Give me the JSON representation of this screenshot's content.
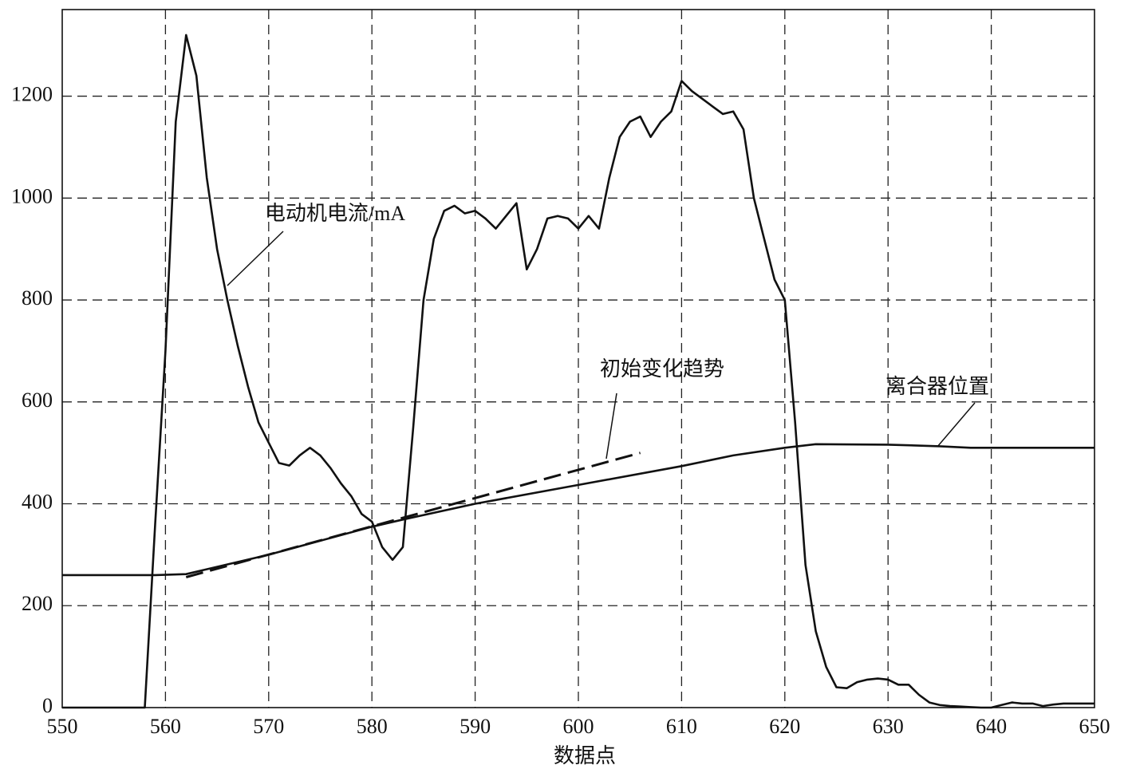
{
  "chart_data": {
    "type": "line",
    "xlabel": "数据点",
    "xlim": [
      550,
      650
    ],
    "xticks": [
      550,
      560,
      570,
      580,
      590,
      600,
      610,
      620,
      630,
      640,
      650
    ],
    "ylim": [
      0,
      1370
    ],
    "yticks": [
      0,
      200,
      400,
      600,
      800,
      1000,
      1200
    ],
    "grid": true,
    "series": [
      {
        "name": "电动机电流/mA",
        "color": "#111111",
        "dashed": false,
        "x": [
          550,
          558,
          559,
          560,
          561,
          562,
          563,
          564,
          565,
          566,
          567,
          568,
          569,
          570,
          571,
          572,
          573,
          574,
          575,
          576,
          577,
          578,
          579,
          580,
          581,
          582,
          583,
          584,
          585,
          586,
          587,
          588,
          589,
          590,
          591,
          592,
          593,
          594,
          595,
          596,
          597,
          598,
          599,
          600,
          601,
          602,
          603,
          604,
          605,
          606,
          607,
          608,
          609,
          610,
          611,
          612,
          613,
          614,
          615,
          616,
          617,
          618,
          619,
          620,
          621,
          622,
          623,
          624,
          625,
          626,
          627,
          628,
          629,
          630,
          631,
          632,
          633,
          634,
          635,
          636,
          637,
          638,
          639,
          640,
          641,
          642,
          643,
          644,
          645,
          646,
          647,
          648,
          650
        ],
        "values": [
          0,
          0,
          360,
          700,
          1150,
          1320,
          1240,
          1040,
          900,
          800,
          710,
          630,
          560,
          520,
          480,
          475,
          495,
          510,
          495,
          470,
          440,
          415,
          380,
          365,
          315,
          290,
          315,
          550,
          800,
          920,
          975,
          985,
          970,
          975,
          960,
          940,
          965,
          990,
          860,
          900,
          960,
          965,
          960,
          940,
          965,
          940,
          1040,
          1120,
          1150,
          1160,
          1120,
          1150,
          1170,
          1230,
          1210,
          1195,
          1180,
          1165,
          1170,
          1135,
          1000,
          920,
          840,
          800,
          560,
          280,
          150,
          80,
          40,
          38,
          50,
          55,
          57,
          55,
          45,
          45,
          25,
          10,
          5,
          3,
          2,
          1,
          0,
          0,
          5,
          10,
          8,
          8,
          3,
          6,
          8,
          8,
          8
        ]
      },
      {
        "name": "离合器位置",
        "color": "#111111",
        "dashed": false,
        "x": [
          550,
          559,
          562,
          570,
          580,
          583,
          590,
          600,
          610,
          615,
          620,
          623,
          630,
          635,
          638,
          650
        ],
        "values": [
          260,
          260,
          262,
          300,
          355,
          369,
          400,
          437,
          474,
          495,
          510,
          517,
          516,
          513,
          510,
          510
        ]
      },
      {
        "name": "初始变化趋势",
        "color": "#111111",
        "dashed": true,
        "x": [
          562,
          606
        ],
        "values": [
          256,
          500
        ]
      }
    ]
  }
}
